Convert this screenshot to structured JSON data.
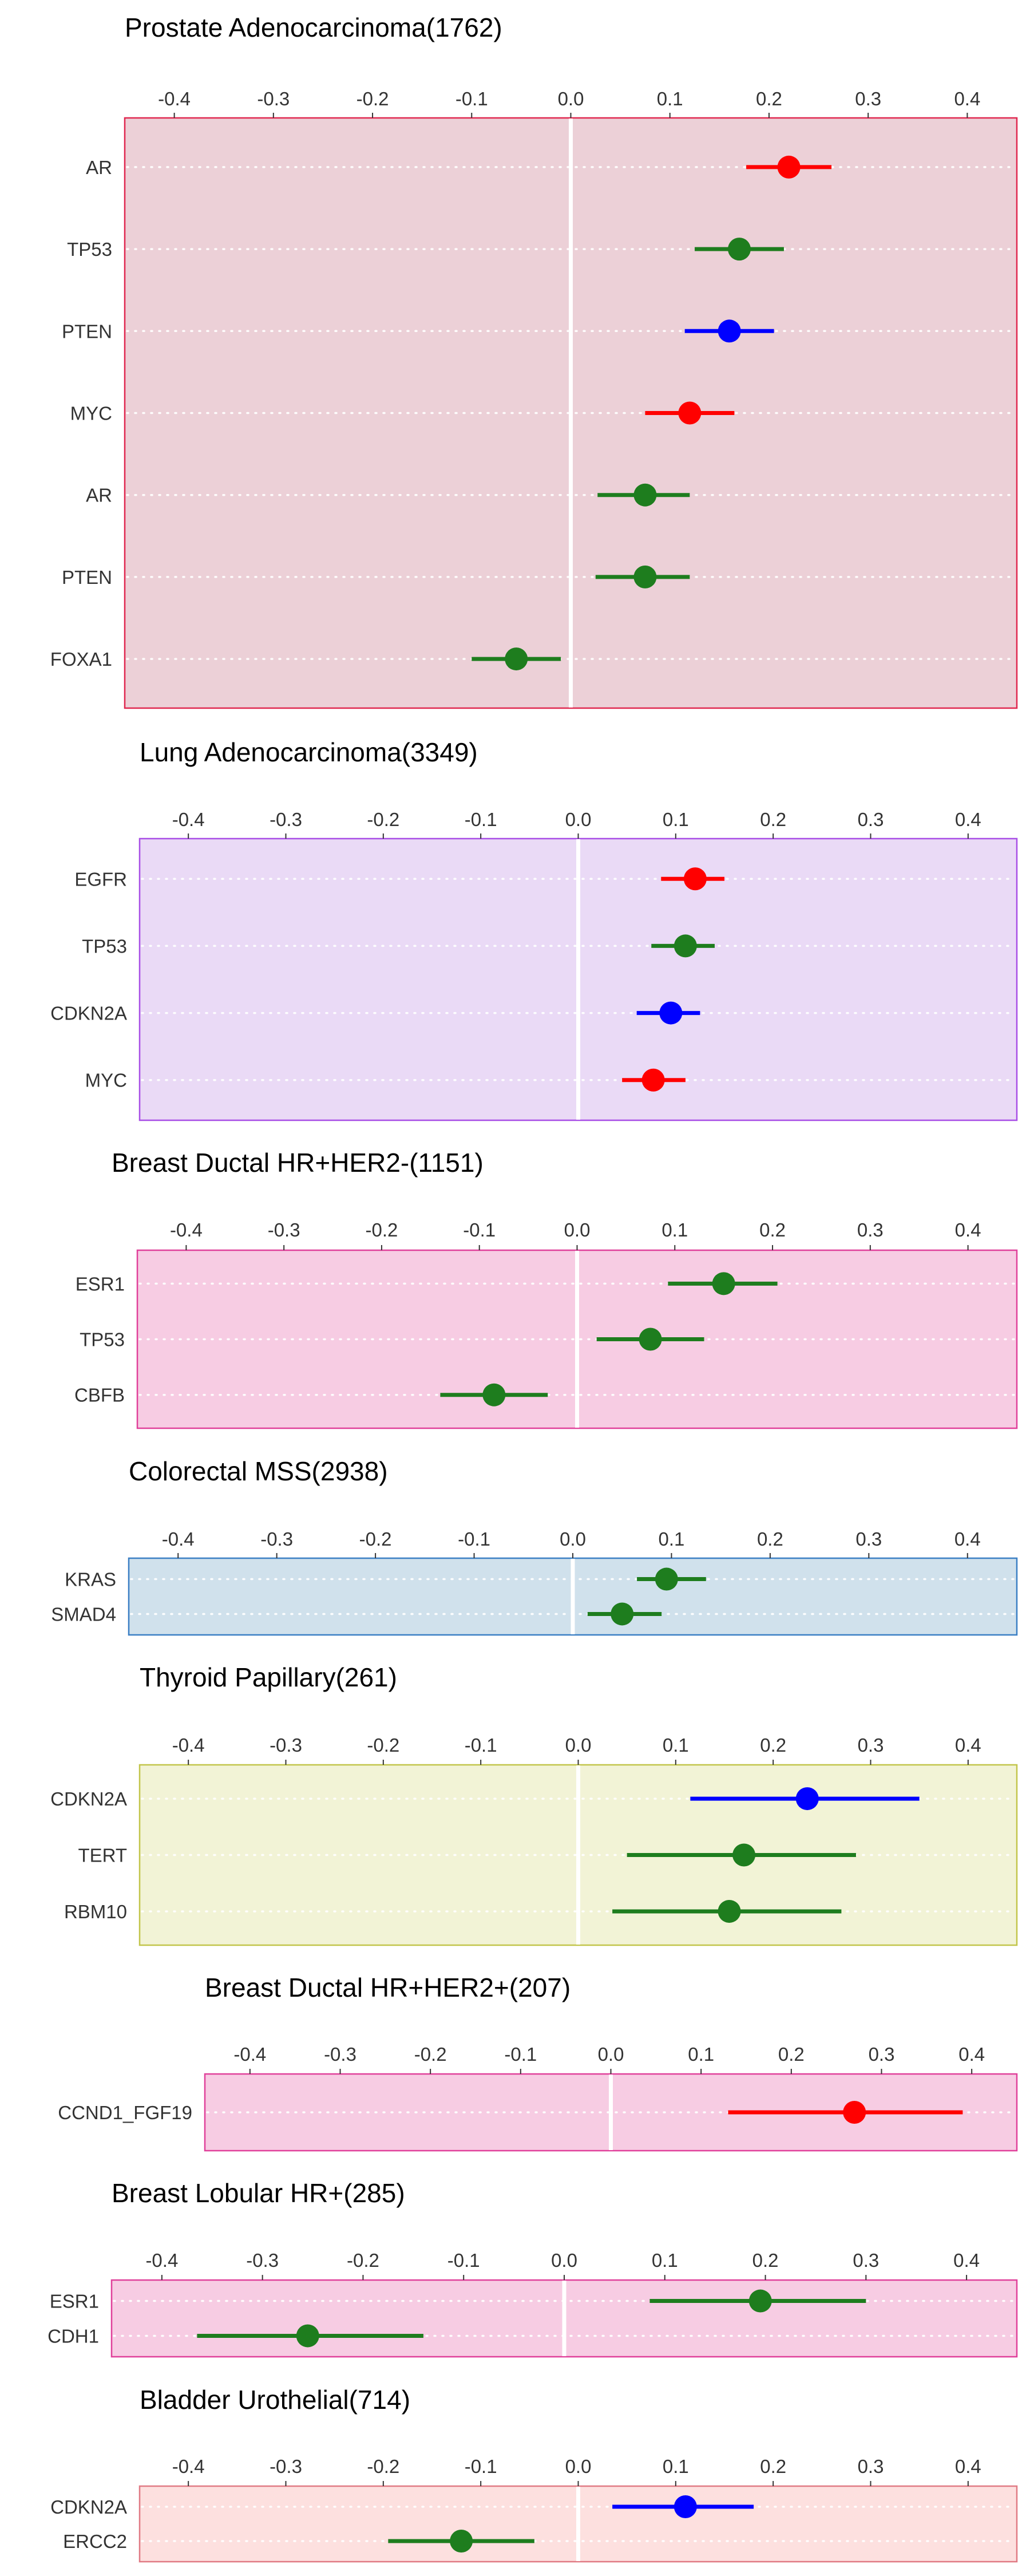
{
  "chart_data": [
    {
      "type": "forest",
      "title": "Prostate Adenocarcinoma(1762)",
      "xlim": [
        -0.45,
        0.45
      ],
      "xticks": [
        "-0.4",
        "-0.3",
        "-0.2",
        "-0.1",
        "0.0",
        "0.1",
        "0.2",
        "0.3",
        "0.4"
      ],
      "bg": "#ecd0d7",
      "border": "#e0274f",
      "rows": [
        {
          "label": "AR",
          "est": 0.22,
          "lo": 0.177,
          "hi": 0.263,
          "color": "red"
        },
        {
          "label": "TP53",
          "est": 0.17,
          "lo": 0.125,
          "hi": 0.215,
          "color": "green"
        },
        {
          "label": "PTEN",
          "est": 0.16,
          "lo": 0.115,
          "hi": 0.205,
          "color": "blue"
        },
        {
          "label": "MYC",
          "est": 0.12,
          "lo": 0.075,
          "hi": 0.165,
          "color": "red"
        },
        {
          "label": "AR",
          "est": 0.075,
          "lo": 0.027,
          "hi": 0.12,
          "color": "green"
        },
        {
          "label": "PTEN",
          "est": 0.075,
          "lo": 0.025,
          "hi": 0.12,
          "color": "green"
        },
        {
          "label": "FOXA1",
          "est": -0.055,
          "lo": -0.1,
          "hi": -0.01,
          "color": "green"
        }
      ]
    },
    {
      "type": "forest",
      "title": "Lung Adenocarcinoma(3349)",
      "xlim": [
        -0.45,
        0.45
      ],
      "xticks": [
        "-0.4",
        "-0.3",
        "-0.2",
        "-0.1",
        "0.0",
        "0.1",
        "0.2",
        "0.3",
        "0.4"
      ],
      "bg": "#eadaf6",
      "border": "#a84ee6",
      "rows": [
        {
          "label": "EGFR",
          "est": 0.12,
          "lo": 0.085,
          "hi": 0.15,
          "color": "red"
        },
        {
          "label": "TP53",
          "est": 0.11,
          "lo": 0.075,
          "hi": 0.14,
          "color": "green"
        },
        {
          "label": "CDKN2A",
          "est": 0.095,
          "lo": 0.06,
          "hi": 0.125,
          "color": "blue"
        },
        {
          "label": "MYC",
          "est": 0.077,
          "lo": 0.045,
          "hi": 0.11,
          "color": "red"
        }
      ]
    },
    {
      "type": "forest",
      "title": "Breast Ductal HR+HER2-(1151)",
      "xlim": [
        -0.45,
        0.45
      ],
      "xticks": [
        "-0.4",
        "-0.3",
        "-0.2",
        "-0.1",
        "0.0",
        "0.1",
        "0.2",
        "0.3",
        "0.4"
      ],
      "bg": "#f7cce3",
      "border": "#e0409a",
      "rows": [
        {
          "label": "ESR1",
          "est": 0.15,
          "lo": 0.093,
          "hi": 0.205,
          "color": "green"
        },
        {
          "label": "TP53",
          "est": 0.075,
          "lo": 0.02,
          "hi": 0.13,
          "color": "green"
        },
        {
          "label": "CBFB",
          "est": -0.085,
          "lo": -0.14,
          "hi": -0.03,
          "color": "green"
        }
      ]
    },
    {
      "type": "forest",
      "title": "Colorectal MSS(2938)",
      "xlim": [
        -0.45,
        0.45
      ],
      "xticks": [
        "-0.4",
        "-0.3",
        "-0.2",
        "-0.1",
        "0.0",
        "0.1",
        "0.2",
        "0.3",
        "0.4"
      ],
      "bg": "#d0e1ec",
      "border": "#3a7fc4",
      "rows": [
        {
          "label": "KRAS",
          "est": 0.095,
          "lo": 0.065,
          "hi": 0.135,
          "color": "green"
        },
        {
          "label": "SMAD4",
          "est": 0.05,
          "lo": 0.015,
          "hi": 0.09,
          "color": "green"
        }
      ]
    },
    {
      "type": "forest",
      "title": "Thyroid Papillary(261)",
      "xlim": [
        -0.45,
        0.45
      ],
      "xticks": [
        "-0.4",
        "-0.3",
        "-0.2",
        "-0.1",
        "0.0",
        "0.1",
        "0.2",
        "0.3",
        "0.4"
      ],
      "bg": "#f2f3d6",
      "border": "#c2c54a",
      "rows": [
        {
          "label": "CDKN2A",
          "est": 0.235,
          "lo": 0.115,
          "hi": 0.35,
          "color": "blue"
        },
        {
          "label": "TERT",
          "est": 0.17,
          "lo": 0.05,
          "hi": 0.285,
          "color": "green"
        },
        {
          "label": "RBM10",
          "est": 0.155,
          "lo": 0.035,
          "hi": 0.27,
          "color": "green"
        }
      ]
    },
    {
      "type": "forest",
      "title": "Breast Ductal HR+HER2+(207)",
      "xlim": [
        -0.45,
        0.45
      ],
      "xticks": [
        "-0.4",
        "-0.3",
        "-0.2",
        "-0.1",
        "0.0",
        "0.1",
        "0.2",
        "0.3",
        "0.4"
      ],
      "bg": "#f7cce3",
      "border": "#e0409a",
      "rows": [
        {
          "label": "CCND1_FGF19",
          "est": 0.27,
          "lo": 0.13,
          "hi": 0.39,
          "color": "red"
        }
      ]
    },
    {
      "type": "forest",
      "title": "Breast Lobular HR+(285)",
      "xlim": [
        -0.45,
        0.45
      ],
      "xticks": [
        "-0.4",
        "-0.3",
        "-0.2",
        "-0.1",
        "0.0",
        "0.1",
        "0.2",
        "0.3",
        "0.4"
      ],
      "bg": "#f7cce3",
      "border": "#e0409a",
      "rows": [
        {
          "label": "ESR1",
          "est": 0.195,
          "lo": 0.085,
          "hi": 0.3,
          "color": "green"
        },
        {
          "label": "CDH1",
          "est": -0.255,
          "lo": -0.365,
          "hi": -0.14,
          "color": "green"
        }
      ]
    },
    {
      "type": "forest",
      "title": "Bladder Urothelial(714)",
      "xlim": [
        -0.45,
        0.45
      ],
      "xticks": [
        "-0.4",
        "-0.3",
        "-0.2",
        "-0.1",
        "0.0",
        "0.1",
        "0.2",
        "0.3",
        "0.4"
      ],
      "bg": "#fde0df",
      "border": "#e07a84",
      "rows": [
        {
          "label": "CDKN2A",
          "est": 0.11,
          "lo": 0.035,
          "hi": 0.18,
          "color": "blue"
        },
        {
          "label": "ERCC2",
          "est": -0.12,
          "lo": -0.195,
          "hi": -0.045,
          "color": "green"
        }
      ]
    }
  ],
  "palette": {
    "red": "#ff0000",
    "green": "#1e7d1e",
    "blue": "#0000ff",
    "grid": "#ffffff"
  }
}
